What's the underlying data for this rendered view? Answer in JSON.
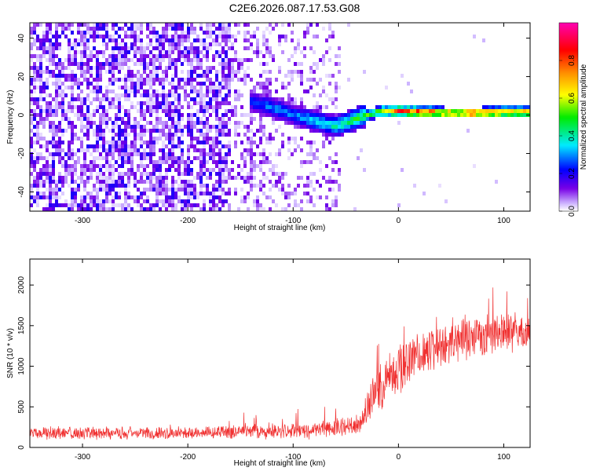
{
  "title": "C2E6.2026.087.17.53.G08",
  "chart_data": [
    {
      "type": "heatmap",
      "panel": "spectrogram",
      "xlabel": "Height of straight line (km)",
      "ylabel": "Frequency (Hz)",
      "xlim": [
        -350,
        125
      ],
      "ylim": [
        -50,
        48
      ],
      "xticks": [
        -300,
        -200,
        -100,
        0,
        100
      ],
      "yticks": [
        -40,
        -20,
        0,
        20,
        40
      ],
      "colorbar": {
        "label": "Normalized spectral amplitude",
        "range": [
          0,
          1
        ],
        "ticks": [
          0.0,
          0.2,
          0.4,
          0.6,
          0.8
        ],
        "tick_labels": [
          "0.0",
          "0.2",
          "0.4",
          "0.6",
          "0.8"
        ],
        "colormap": "rainbow (white→violet→blue→cyan→green→yellow→orange→red→magenta)"
      },
      "features": {
        "noise_region_x": [
          -350,
          -55
        ],
        "noise_amplitude_range": [
          0.0,
          0.2
        ],
        "signal_track": [
          {
            "x": -140,
            "freq": 7,
            "amp": 0.25
          },
          {
            "x": -120,
            "freq": 4,
            "amp": 0.3
          },
          {
            "x": -100,
            "freq": 0,
            "amp": 0.3
          },
          {
            "x": -80,
            "freq": -3,
            "amp": 0.35
          },
          {
            "x": -60,
            "freq": -6,
            "amp": 0.4
          },
          {
            "x": -45,
            "freq": -3,
            "amp": 0.45
          },
          {
            "x": -30,
            "freq": 0,
            "amp": 0.55
          },
          {
            "x": -15,
            "freq": 2,
            "amp": 0.65
          },
          {
            "x": 0,
            "freq": 2,
            "amp": 0.8
          },
          {
            "x": 25,
            "freq": 1.5,
            "amp": 0.85
          },
          {
            "x": 50,
            "freq": 1,
            "amp": 0.8
          },
          {
            "x": 75,
            "freq": 1,
            "amp": 0.85
          },
          {
            "x": 100,
            "freq": 1.5,
            "amp": 0.8
          },
          {
            "x": 125,
            "freq": 1.5,
            "amp": 0.75
          }
        ]
      }
    },
    {
      "type": "line",
      "panel": "snr",
      "xlabel": "Height of straight line (km)",
      "ylabel": "SNR (10 * v/v)",
      "xlim": [
        -350,
        125
      ],
      "ylim": [
        0,
        2320
      ],
      "xticks": [
        -300,
        -200,
        -100,
        0,
        100
      ],
      "yticks": [
        0,
        500,
        1000,
        1500,
        2000
      ],
      "series": [
        {
          "name": "SNR",
          "color": "#f03030",
          "x": [
            -350,
            -300,
            -250,
            -200,
            -150,
            -100,
            -80,
            -60,
            -40,
            -35,
            -30,
            -20,
            -10,
            0,
            10,
            25,
            50,
            75,
            100,
            110,
            125
          ],
          "y": [
            180,
            180,
            180,
            180,
            185,
            200,
            220,
            250,
            280,
            300,
            520,
            700,
            850,
            960,
            1060,
            1180,
            1300,
            1380,
            1420,
            1380,
            1430
          ],
          "noise_band": [
            110,
            110,
            110,
            110,
            120,
            140,
            150,
            170,
            180,
            200,
            330,
            380,
            400,
            420,
            420,
            400,
            380,
            360,
            330,
            320,
            320
          ]
        }
      ]
    }
  ],
  "colors": {
    "snr_line": "#f03030",
    "axes": "#000000",
    "background": "#ffffff"
  }
}
